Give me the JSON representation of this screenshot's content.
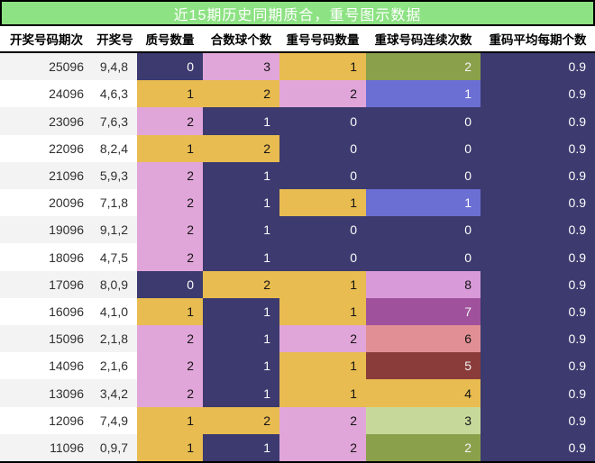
{
  "title": "近15期历史同期质合，重号图示数据",
  "theme": {
    "title_bg": "#8de283",
    "title_fg": "#ffffff",
    "border": "#000000",
    "header_bg": "#ffffff",
    "header_fg": "#000000",
    "row_odd_bg": "#f3f3f3",
    "row_even_bg": "#ffffff",
    "label_fg": "#2f2f2f"
  },
  "palette": {
    "navy": {
      "bg": "#3c3a6e",
      "fg": "#fdfdfd"
    },
    "gold": {
      "bg": "#e8bc50",
      "fg": "#141414"
    },
    "pink": {
      "bg": "#e1a6d9",
      "fg": "#141414"
    },
    "peri": {
      "bg": "#6b6fd3",
      "fg": "#fdfdfd"
    },
    "olive": {
      "bg": "#8ba04b",
      "fg": "#f2f2f2"
    },
    "lgreen": {
      "bg": "#c7d99a",
      "fg": "#141414"
    },
    "orchid": {
      "bg": "#d89ad8",
      "fg": "#141414"
    },
    "magenta": {
      "bg": "#a0519c",
      "fg": "#f2f2f2"
    },
    "salmon": {
      "bg": "#e18f94",
      "fg": "#141414"
    },
    "darkred": {
      "bg": "#8a3c3a",
      "fg": "#f2f2f2"
    }
  },
  "chart_data": {
    "type": "table",
    "title": "近15期历史同期质合，重号图示数据",
    "columns": [
      "开奖号码期次",
      "开奖号",
      "质号数量",
      "合数球个数",
      "重号号码数量",
      "重球号码连续次数",
      "重码平均每期个数"
    ],
    "rows": [
      {
        "period": "25096",
        "draw": "9,4,8",
        "cells": [
          [
            "0",
            "navy"
          ],
          [
            "3",
            "pink"
          ],
          [
            "1",
            "gold"
          ],
          [
            "2",
            "olive"
          ]
        ],
        "avg": "0.9"
      },
      {
        "period": "24096",
        "draw": "4,6,3",
        "cells": [
          [
            "1",
            "gold"
          ],
          [
            "2",
            "gold"
          ],
          [
            "2",
            "pink"
          ],
          [
            "1",
            "peri"
          ]
        ],
        "avg": "0.9"
      },
      {
        "period": "23096",
        "draw": "7,6,3",
        "cells": [
          [
            "2",
            "pink"
          ],
          [
            "1",
            "navy"
          ],
          [
            "0",
            "navy"
          ],
          [
            "0",
            "navy"
          ]
        ],
        "avg": "0.9"
      },
      {
        "period": "22096",
        "draw": "8,2,4",
        "cells": [
          [
            "1",
            "gold"
          ],
          [
            "2",
            "gold"
          ],
          [
            "0",
            "navy"
          ],
          [
            "0",
            "navy"
          ]
        ],
        "avg": "0.9"
      },
      {
        "period": "21096",
        "draw": "5,9,3",
        "cells": [
          [
            "2",
            "pink"
          ],
          [
            "1",
            "navy"
          ],
          [
            "0",
            "navy"
          ],
          [
            "0",
            "navy"
          ]
        ],
        "avg": "0.9"
      },
      {
        "period": "20096",
        "draw": "7,1,8",
        "cells": [
          [
            "2",
            "pink"
          ],
          [
            "1",
            "navy"
          ],
          [
            "1",
            "gold"
          ],
          [
            "1",
            "peri"
          ]
        ],
        "avg": "0.9"
      },
      {
        "period": "19096",
        "draw": "9,1,2",
        "cells": [
          [
            "2",
            "pink"
          ],
          [
            "1",
            "navy"
          ],
          [
            "0",
            "navy"
          ],
          [
            "0",
            "navy"
          ]
        ],
        "avg": "0.9"
      },
      {
        "period": "18096",
        "draw": "4,7,5",
        "cells": [
          [
            "2",
            "pink"
          ],
          [
            "1",
            "navy"
          ],
          [
            "0",
            "navy"
          ],
          [
            "0",
            "navy"
          ]
        ],
        "avg": "0.9"
      },
      {
        "period": "17096",
        "draw": "8,0,9",
        "cells": [
          [
            "0",
            "navy"
          ],
          [
            "2",
            "gold"
          ],
          [
            "1",
            "gold"
          ],
          [
            "8",
            "orchid"
          ]
        ],
        "avg": "0.9"
      },
      {
        "period": "16096",
        "draw": "4,1,0",
        "cells": [
          [
            "1",
            "gold"
          ],
          [
            "1",
            "navy"
          ],
          [
            "1",
            "gold"
          ],
          [
            "7",
            "magenta"
          ]
        ],
        "avg": "0.9"
      },
      {
        "period": "15096",
        "draw": "2,1,8",
        "cells": [
          [
            "2",
            "pink"
          ],
          [
            "1",
            "navy"
          ],
          [
            "2",
            "pink"
          ],
          [
            "6",
            "salmon"
          ]
        ],
        "avg": "0.9"
      },
      {
        "period": "14096",
        "draw": "2,1,6",
        "cells": [
          [
            "2",
            "pink"
          ],
          [
            "1",
            "navy"
          ],
          [
            "1",
            "gold"
          ],
          [
            "5",
            "darkred"
          ]
        ],
        "avg": "0.9"
      },
      {
        "period": "13096",
        "draw": "3,4,2",
        "cells": [
          [
            "2",
            "pink"
          ],
          [
            "1",
            "navy"
          ],
          [
            "1",
            "gold"
          ],
          [
            "4",
            "gold"
          ]
        ],
        "avg": "0.9"
      },
      {
        "period": "12096",
        "draw": "7,4,9",
        "cells": [
          [
            "1",
            "gold"
          ],
          [
            "2",
            "gold"
          ],
          [
            "2",
            "pink"
          ],
          [
            "3",
            "lgreen"
          ]
        ],
        "avg": "0.9"
      },
      {
        "period": "11096",
        "draw": "0,9,7",
        "cells": [
          [
            "1",
            "gold"
          ],
          [
            "1",
            "navy"
          ],
          [
            "2",
            "pink"
          ],
          [
            "2",
            "olive"
          ]
        ],
        "avg": "0.9"
      }
    ]
  }
}
